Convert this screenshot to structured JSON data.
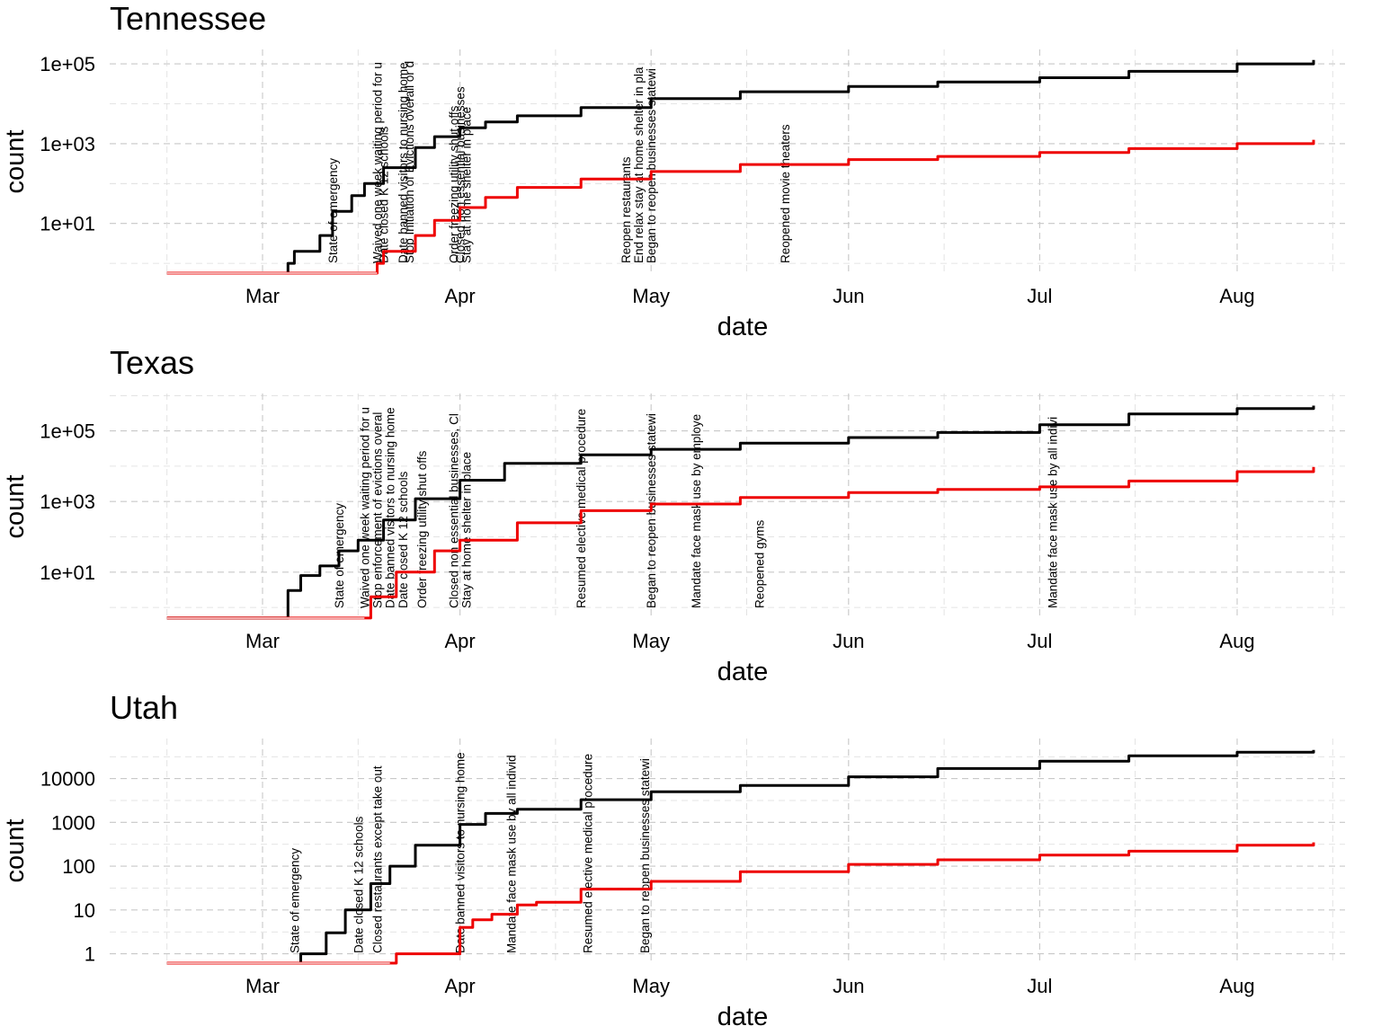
{
  "chart_data": [
    {
      "type": "line",
      "title": "Tennessee",
      "xlabel": "date",
      "ylabel": "count",
      "y_scale": "log10",
      "y_ticks": [
        "1e+01",
        "1e+03",
        "1e+05"
      ],
      "x_ticks": [
        "Mar",
        "Apr",
        "May",
        "Jun",
        "Jul",
        "Aug"
      ],
      "series": [
        {
          "color": "#000000",
          "x": [
            "2020-02-15",
            "2020-03-05",
            "2020-03-06",
            "2020-03-10",
            "2020-03-12",
            "2020-03-15",
            "2020-03-17",
            "2020-03-20",
            "2020-03-25",
            "2020-03-28",
            "2020-04-01",
            "2020-04-05",
            "2020-04-10",
            "2020-04-20",
            "2020-05-01",
            "2020-05-15",
            "2020-06-01",
            "2020-06-15",
            "2020-07-01",
            "2020-07-15",
            "2020-08-01",
            "2020-08-13"
          ],
          "y": [
            0.5,
            1,
            2,
            5,
            20,
            50,
            100,
            250,
            800,
            1500,
            2500,
            3500,
            5000,
            8000,
            13500,
            20000,
            27000,
            35000,
            45000,
            65000,
            100000,
            125000
          ]
        },
        {
          "color": "#ee0000",
          "x": [
            "2020-02-15",
            "2020-03-19",
            "2020-03-20",
            "2020-03-25",
            "2020-03-28",
            "2020-04-01",
            "2020-04-05",
            "2020-04-10",
            "2020-04-20",
            "2020-05-01",
            "2020-05-15",
            "2020-06-01",
            "2020-06-15",
            "2020-07-01",
            "2020-07-15",
            "2020-08-01",
            "2020-08-13"
          ],
          "y": [
            0.5,
            1,
            2,
            5,
            12,
            25,
            45,
            80,
            130,
            200,
            300,
            400,
            480,
            600,
            750,
            1000,
            1250
          ]
        }
      ],
      "annotations": [
        {
          "date": "2020-03-12",
          "label": "State of emergency"
        },
        {
          "date": "2020-03-19",
          "label": "Waived one week waiting period for u"
        },
        {
          "date": "2020-03-20",
          "label": "Date closed K 12 schools"
        },
        {
          "date": "2020-03-23",
          "label": "Date banned visitors to nursing home"
        },
        {
          "date": "2020-03-24",
          "label": "Stop Initiation of Evictions overall or d"
        },
        {
          "date": "2020-03-31",
          "label": "Order freezing utility shut offs"
        },
        {
          "date": "2020-04-01",
          "label": "Closed non essential businesses"
        },
        {
          "date": "2020-04-02",
          "label": "Stay at home  shelter in place"
        },
        {
          "date": "2020-04-27",
          "label": "Reopen restaurants"
        },
        {
          "date": "2020-04-29",
          "label": "End relax stay at home shelter in pla"
        },
        {
          "date": "2020-05-01",
          "label": "Began to reopen businesses statewi"
        },
        {
          "date": "2020-05-22",
          "label": "Reopened movie theaters"
        }
      ]
    },
    {
      "type": "line",
      "title": "Texas",
      "xlabel": "date",
      "ylabel": "count",
      "y_scale": "log10",
      "y_ticks": [
        "1e+01",
        "1e+03",
        "1e+05"
      ],
      "x_ticks": [
        "Mar",
        "Apr",
        "May",
        "Jun",
        "Jul",
        "Aug"
      ],
      "series": [
        {
          "color": "#000000",
          "x": [
            "2020-02-15",
            "2020-03-04",
            "2020-03-05",
            "2020-03-07",
            "2020-03-10",
            "2020-03-13",
            "2020-03-16",
            "2020-03-20",
            "2020-03-25",
            "2020-04-01",
            "2020-04-08",
            "2020-04-20",
            "2020-05-01",
            "2020-05-15",
            "2020-06-01",
            "2020-06-15",
            "2020-07-01",
            "2020-07-15",
            "2020-08-01",
            "2020-08-13"
          ],
          "y": [
            0.5,
            0.5,
            3,
            8,
            15,
            40,
            80,
            300,
            1200,
            4000,
            12000,
            21000,
            30000,
            45000,
            65000,
            90000,
            150000,
            300000,
            430000,
            520000
          ]
        },
        {
          "color": "#ee0000",
          "x": [
            "2020-02-15",
            "2020-03-17",
            "2020-03-18",
            "2020-03-22",
            "2020-03-28",
            "2020-04-01",
            "2020-04-10",
            "2020-04-20",
            "2020-05-01",
            "2020-05-15",
            "2020-06-01",
            "2020-06-15",
            "2020-07-01",
            "2020-07-15",
            "2020-08-01",
            "2020-08-13"
          ],
          "y": [
            0.5,
            0.5,
            2,
            10,
            40,
            80,
            250,
            550,
            850,
            1300,
            1800,
            2200,
            2600,
            3800,
            7000,
            9500
          ]
        }
      ],
      "annotations": [
        {
          "date": "2020-03-13",
          "label": "State of emergency"
        },
        {
          "date": "2020-03-17",
          "label": "Waived one week waiting period for u"
        },
        {
          "date": "2020-03-19",
          "label": "Stop enforcement of evictions overal"
        },
        {
          "date": "2020-03-21",
          "label": "Date banned visitors to nursing home"
        },
        {
          "date": "2020-03-23",
          "label": "Date closed K 12 schools"
        },
        {
          "date": "2020-03-26",
          "label": "Order freezing utility shut offs"
        },
        {
          "date": "2020-03-31",
          "label": "Closed non essential businesses, Cl"
        },
        {
          "date": "2020-04-02",
          "label": "Stay at home  shelter in place"
        },
        {
          "date": "2020-04-20",
          "label": "Resumed elective medical procedure"
        },
        {
          "date": "2020-05-01",
          "label": "Began to reopen businesses statewi"
        },
        {
          "date": "2020-05-08",
          "label": "Mandate face mask use by employe"
        },
        {
          "date": "2020-05-18",
          "label": "Reopened gyms"
        },
        {
          "date": "2020-07-03",
          "label": "Mandate face mask use by all indivi"
        }
      ]
    },
    {
      "type": "line",
      "title": "Utah",
      "xlabel": "date",
      "ylabel": "count",
      "y_scale": "log10",
      "y_ticks": [
        "1",
        "10",
        "100",
        "1000",
        "10000"
      ],
      "x_ticks": [
        "Mar",
        "Apr",
        "May",
        "Jun",
        "Jul",
        "Aug"
      ],
      "series": [
        {
          "color": "#000000",
          "x": [
            "2020-02-15",
            "2020-03-06",
            "2020-03-07",
            "2020-03-11",
            "2020-03-14",
            "2020-03-18",
            "2020-03-21",
            "2020-03-25",
            "2020-04-01",
            "2020-04-05",
            "2020-04-10",
            "2020-04-20",
            "2020-05-01",
            "2020-05-15",
            "2020-06-01",
            "2020-06-15",
            "2020-07-01",
            "2020-07-15",
            "2020-08-01",
            "2020-08-13"
          ],
          "y": [
            0.6,
            0.6,
            1,
            3,
            10,
            40,
            100,
            300,
            900,
            1600,
            2000,
            3300,
            5000,
            7000,
            11000,
            17000,
            25000,
            33000,
            40000,
            45000
          ]
        },
        {
          "color": "#ee0000",
          "x": [
            "2020-02-15",
            "2020-03-21",
            "2020-03-22",
            "2020-03-31",
            "2020-04-01",
            "2020-04-03",
            "2020-04-06",
            "2020-04-10",
            "2020-04-13",
            "2020-04-20",
            "2020-05-01",
            "2020-05-15",
            "2020-06-01",
            "2020-06-15",
            "2020-07-01",
            "2020-07-15",
            "2020-08-01",
            "2020-08-13"
          ],
          "y": [
            0.6,
            0.6,
            1,
            1,
            4,
            6,
            8,
            13,
            15,
            30,
            45,
            75,
            110,
            140,
            180,
            220,
            300,
            350
          ]
        }
      ],
      "annotations": [
        {
          "date": "2020-03-06",
          "label": "State of emergency"
        },
        {
          "date": "2020-03-16",
          "label": "Date closed K 12 schools"
        },
        {
          "date": "2020-03-19",
          "label": "Closed restaurants except take out"
        },
        {
          "date": "2020-04-01",
          "label": "Date banned visitors to nursing home"
        },
        {
          "date": "2020-04-09",
          "label": "Mandate face mask use by all individ"
        },
        {
          "date": "2020-04-21",
          "label": "Resumed elective medical procedure"
        },
        {
          "date": "2020-04-30",
          "label": "Began to reopen businesses statewi"
        }
      ]
    }
  ]
}
